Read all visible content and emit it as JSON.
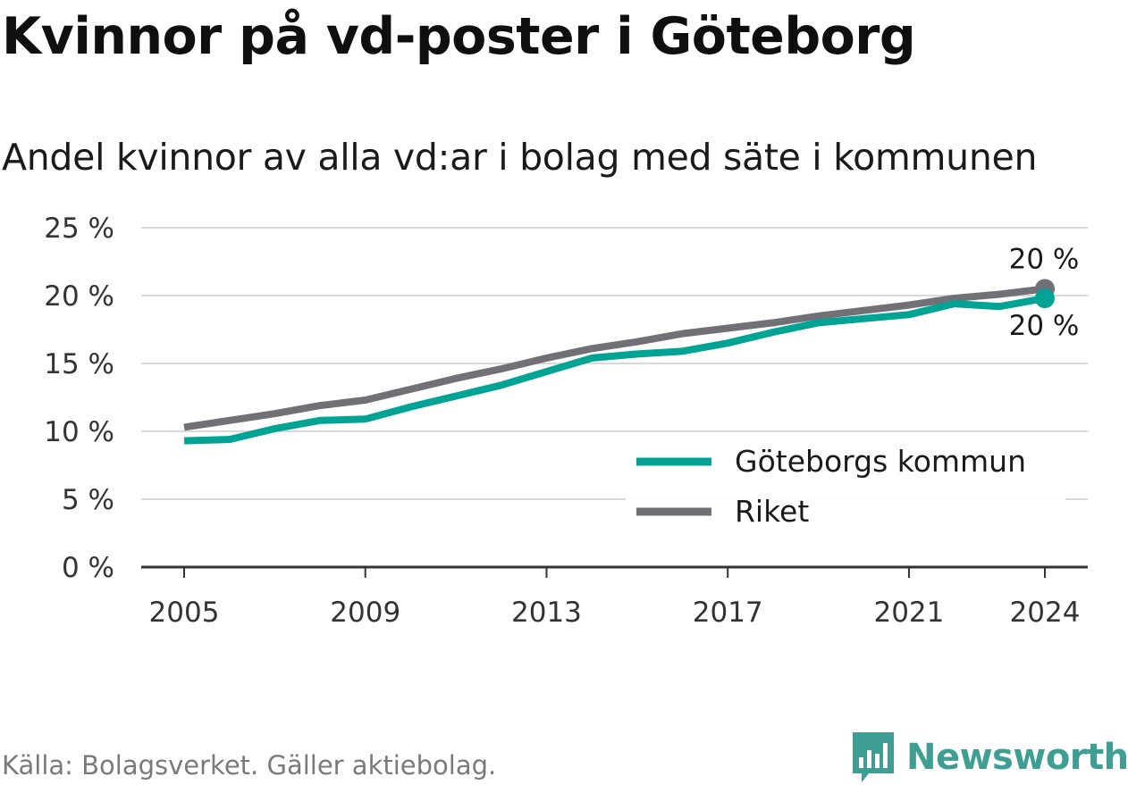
{
  "title": "Kvinnor på vd-poster i Göteborg",
  "subtitle": "Andel kvinnor av alla vd:ar i bolag med säte i kommunen",
  "source": "Källa: Bolagsverket. Gäller aktiebolag.",
  "brand": "Newsworthy",
  "colors": {
    "goteborg": "#00a394",
    "riket": "#727077",
    "grid": "#d9d9d9",
    "axis": "#333333"
  },
  "chart_data": {
    "type": "line",
    "title": "Kvinnor på vd-poster i Göteborg",
    "subtitle": "Andel kvinnor av alla vd:ar i bolag med säte i kommunen",
    "x": [
      2005,
      2006,
      2007,
      2008,
      2009,
      2010,
      2011,
      2012,
      2013,
      2014,
      2015,
      2016,
      2017,
      2018,
      2019,
      2020,
      2021,
      2022,
      2023,
      2024
    ],
    "x_ticks": [
      "2005",
      "2009",
      "2013",
      "2017",
      "2021",
      "2024"
    ],
    "y_ticks": [
      "0 %",
      "5 %",
      "10 %",
      "15 %",
      "20 %",
      "25 %"
    ],
    "ylim": [
      0,
      25
    ],
    "grid": true,
    "legend_position": "bottom-right",
    "series": [
      {
        "name": "Göteborgs kommun",
        "color": "#00a394",
        "values": [
          9.3,
          9.4,
          10.2,
          10.8,
          10.9,
          11.8,
          12.6,
          13.4,
          14.4,
          15.4,
          15.7,
          15.9,
          16.5,
          17.3,
          18.0,
          18.3,
          18.6,
          19.4,
          19.2,
          19.8
        ],
        "end_label": "20 %"
      },
      {
        "name": "Riket",
        "color": "#727077",
        "values": [
          10.3,
          10.8,
          11.3,
          11.9,
          12.3,
          13.1,
          13.9,
          14.6,
          15.4,
          16.1,
          16.6,
          17.2,
          17.6,
          18.0,
          18.5,
          18.9,
          19.3,
          19.8,
          20.1,
          20.5
        ],
        "end_label": "20 %"
      }
    ]
  }
}
